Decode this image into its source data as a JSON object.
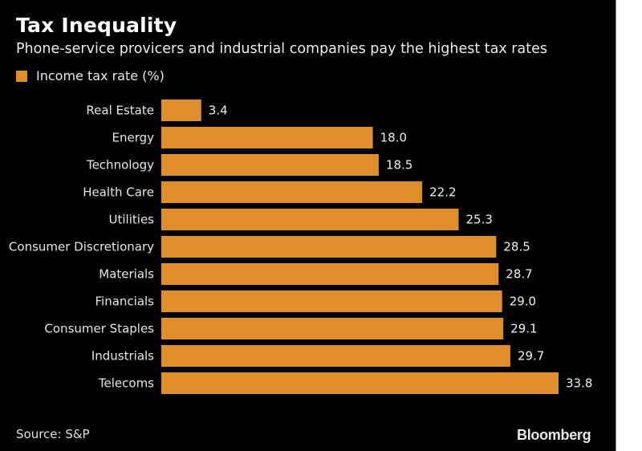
{
  "header": {
    "title": "Tax Inequality",
    "subtitle": "Phone-service provicers and industrial companies pay the highest tax rates"
  },
  "legend": {
    "label": "Income tax rate (%)",
    "color": "#E08E2A"
  },
  "footer": {
    "source": "Source: S&P",
    "brand": "Bloomberg"
  },
  "chart_data": {
    "type": "bar",
    "orientation": "horizontal",
    "title": "Tax Inequality",
    "subtitle": "Phone-service provicers and industrial companies pay the highest tax rates",
    "xlabel": "",
    "ylabel": "",
    "xlim": [
      0,
      33.8
    ],
    "grid": false,
    "legend_position": "top-left",
    "categories": [
      "Real Estate",
      "Energy",
      "Technology",
      "Health Care",
      "Utilities",
      "Consumer Discretionary",
      "Materials",
      "Financials",
      "Consumer Staples",
      "Industrials",
      "Telecoms"
    ],
    "series": [
      {
        "name": "Income tax rate (%)",
        "color": "#E08E2A",
        "values": [
          3.4,
          18.0,
          18.5,
          22.2,
          25.3,
          28.5,
          28.7,
          29.0,
          29.1,
          29.7,
          33.8
        ],
        "labels": [
          "3.4",
          "18.0",
          "18.5",
          "22.2",
          "25.3",
          "28.5",
          "28.7",
          "29.0",
          "29.1",
          "29.7",
          "33.8"
        ]
      }
    ]
  }
}
